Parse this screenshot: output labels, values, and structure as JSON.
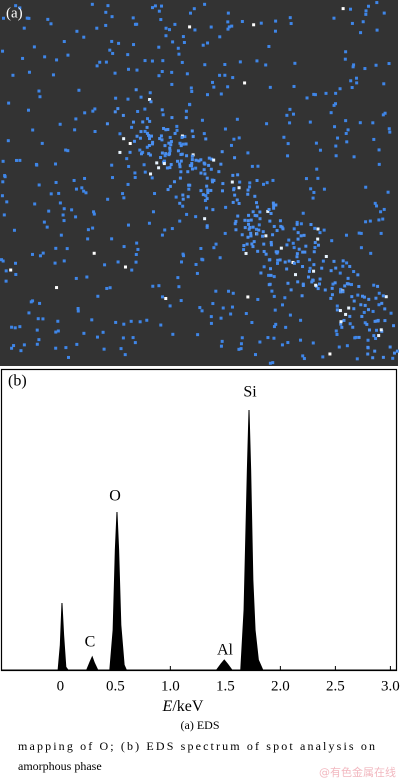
{
  "panel_a": {
    "label": "(a)"
  },
  "chart_data": {
    "type": "area",
    "panel_label": "(b)",
    "x_label_symbol": "E",
    "x_label_unit": "/keV",
    "x": [
      -0.53,
      -0.02,
      0.0,
      0.015,
      0.03,
      0.05,
      0.07,
      0.24,
      0.27,
      0.29,
      0.31,
      0.34,
      0.45,
      0.48,
      0.5,
      0.515,
      0.53,
      0.55,
      0.58,
      0.6,
      1.42,
      1.46,
      1.49,
      1.52,
      1.56,
      1.64,
      1.67,
      1.7,
      1.715,
      1.73,
      1.75,
      1.77,
      1.8,
      1.84,
      3.06
    ],
    "values": [
      0,
      0,
      25,
      67,
      35,
      3,
      0,
      0,
      8,
      13,
      7,
      0,
      0,
      40,
      120,
      158,
      120,
      45,
      5,
      0,
      0,
      6,
      10,
      6,
      0,
      0,
      60,
      200,
      260,
      200,
      90,
      40,
      10,
      0,
      0
    ],
    "color": "#000000",
    "xlim": [
      -0.53,
      3.06
    ],
    "ylim": [
      0,
      300
    ],
    "xticks": [
      0,
      0.5,
      {
        "value": 1,
        "label": "1.0"
      },
      1.5,
      {
        "value": 2,
        "label": "2.0"
      },
      2.5,
      {
        "value": 3,
        "label": "3.0"
      }
    ],
    "annotations": [
      "C",
      "O",
      "Al",
      "Si"
    ]
  },
  "caption": [
    "(a)  EDS",
    "mapping of O; (b) EDS spectrum of spot analysis on",
    "amorphous phase"
  ],
  "watermark": "@有色金属在线"
}
